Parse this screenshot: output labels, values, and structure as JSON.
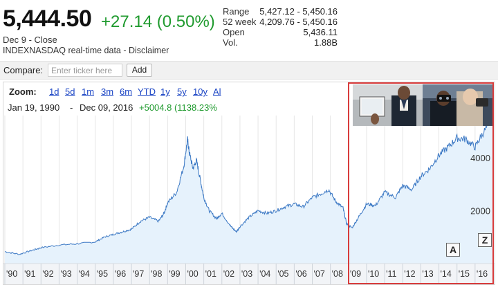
{
  "quote": {
    "price": "5,444.50",
    "change": "+27.14 (0.50%)",
    "date": "Dec 9 - Close",
    "source": "INDEXNASDAQ real-time data - Disclaimer"
  },
  "stats": [
    {
      "label": "Range",
      "value": "5,427.12 - 5,450.16"
    },
    {
      "label": "52 week",
      "value": "4,209.76 - 5,450.16"
    },
    {
      "label": "Open",
      "value": "5,436.11"
    },
    {
      "label": "Vol.",
      "value": "1.88B"
    }
  ],
  "compare": {
    "label": "Compare:",
    "placeholder": "Enter ticker here",
    "add_label": "Add"
  },
  "zoom": {
    "label": "Zoom:",
    "options": [
      "1d",
      "5d",
      "1m",
      "3m",
      "6m",
      "YTD",
      "1y",
      "5y",
      "10y",
      "All"
    ],
    "visible_text": [
      "1d",
      "5d",
      "1m",
      "3m",
      "6m",
      "YTD",
      "1y",
      "5y",
      "10y",
      "Al"
    ]
  },
  "range": {
    "start": "Jan 19, 1990",
    "separator": "-",
    "end": "Dec 09, 2016",
    "change": "+5004.8 (1138.23%"
  },
  "widgets": {
    "a_label": "A",
    "z_label": "Z"
  },
  "colors": {
    "positive": "#1f9a2e",
    "link": "#1a44c4",
    "line": "#3b78c4",
    "area": "#e6f2fc",
    "highlight": "#d83c3c"
  },
  "chart_data": {
    "type": "area",
    "x_tick_labels": [
      "'90",
      "'91",
      "'92",
      "'93",
      "'94",
      "'95",
      "'96",
      "'97",
      "'98",
      "'99",
      "'00",
      "'01",
      "'02",
      "'03",
      "'04",
      "'05",
      "'06",
      "'07",
      "'08",
      "'09",
      "'10",
      "'11",
      "'12",
      "'13",
      "'14",
      "'15",
      "'16"
    ],
    "y_tick_labels": [
      "2000",
      "4000"
    ],
    "ylim": [
      0,
      5600
    ],
    "grid": true,
    "series": [
      {
        "x": [
          1990,
          1990.8,
          1991.5,
          1992,
          1993,
          1994,
          1995,
          1995.5,
          1996,
          1996.5,
          1997,
          1997.5,
          1998,
          1998.5,
          1998.8,
          1999,
          1999.5,
          1999.9,
          2000.1,
          2000.2,
          2000.4,
          2000.6,
          2000.8,
          2001,
          2001.3,
          2001.7,
          2002,
          2002.5,
          2002.8,
          2003,
          2003.5,
          2004,
          2004.5,
          2005,
          2005.5,
          2006,
          2006.5,
          2007,
          2007.5,
          2007.9,
          2008.3,
          2008.7,
          2008.9,
          2009.2,
          2009.6,
          2010,
          2010.5,
          2011,
          2011.6,
          2012,
          2012.5,
          2013,
          2013.5,
          2014,
          2014.5,
          2015,
          2015.5,
          2016,
          2016.4,
          2016.95
        ],
        "y": [
          450,
          350,
          500,
          600,
          700,
          750,
          820,
          1000,
          1100,
          1200,
          1300,
          1600,
          1750,
          1600,
          1900,
          2300,
          2700,
          3700,
          4700,
          4200,
          3600,
          3900,
          3200,
          2500,
          2000,
          1700,
          1900,
          1400,
          1200,
          1400,
          1750,
          2000,
          1900,
          2000,
          2150,
          2250,
          2150,
          2500,
          2650,
          2800,
          2350,
          2100,
          1500,
          1350,
          1800,
          2250,
          2200,
          2700,
          2500,
          2950,
          2800,
          3300,
          3600,
          4100,
          4400,
          4750,
          4700,
          4400,
          4900,
          5444.5
        ]
      }
    ]
  }
}
